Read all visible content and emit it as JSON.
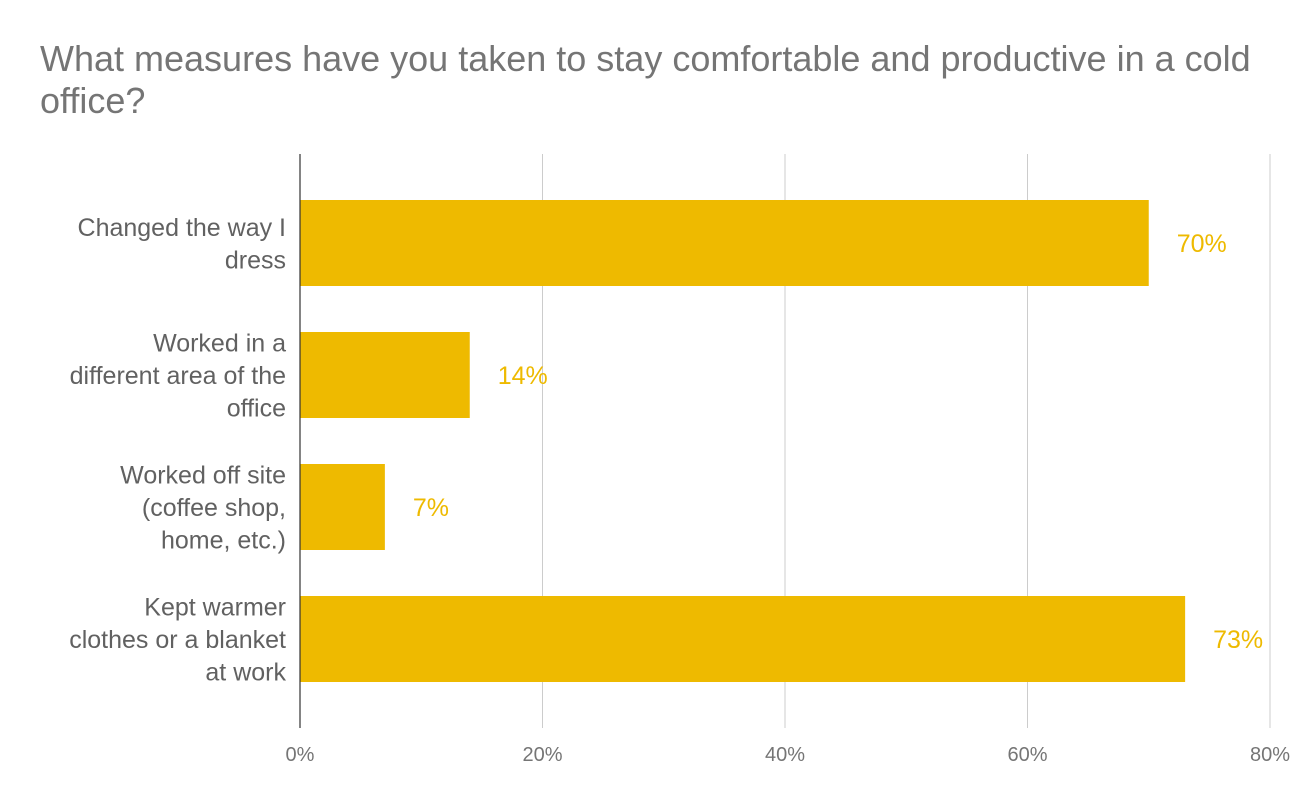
{
  "chart_data": {
    "type": "bar",
    "orientation": "horizontal",
    "title": "What measures have you taken to stay comfortable and productive in a cold office?",
    "categories": [
      [
        "Changed the way I",
        "dress"
      ],
      [
        "Worked in a",
        "different area of the",
        "office"
      ],
      [
        "Worked off site",
        "(coffee shop,",
        "home, etc.)"
      ],
      [
        "Kept warmer",
        "clothes or a blanket",
        "at work"
      ]
    ],
    "values": [
      70,
      14,
      7,
      73
    ],
    "data_labels": [
      "70%",
      "14%",
      "7%",
      "73%"
    ],
    "xlim": [
      0,
      80
    ],
    "xticks": [
      0,
      20,
      40,
      60,
      80
    ],
    "xtick_labels": [
      "0%",
      "20%",
      "40%",
      "60%",
      "80%"
    ],
    "xlabel": "",
    "ylabel": "",
    "grid": true,
    "legend": "none",
    "colors": {
      "bar": "#EEBA00",
      "data_label": "#EEBA00",
      "grid": "#CCCCCC",
      "axis": "#333333"
    }
  }
}
